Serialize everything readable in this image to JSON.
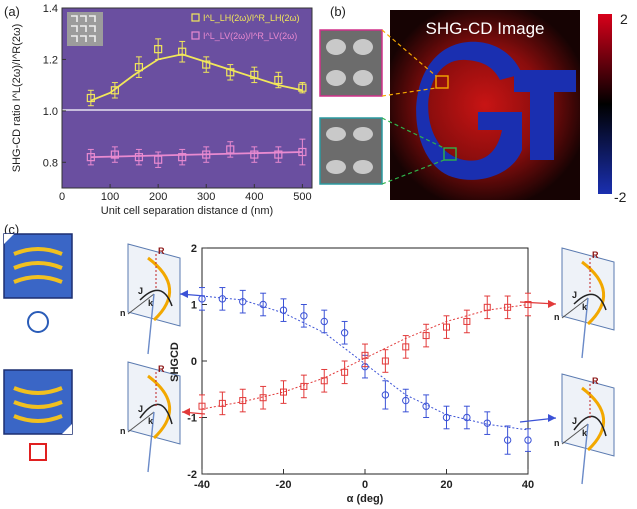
{
  "panel_labels": {
    "a": "(a)",
    "b": "(b)",
    "c": "(c)"
  },
  "colors": {
    "plot_bg": "#6a4fa0",
    "yellow": "#f2e85a",
    "pink": "#e98ad0",
    "blue_series": "#3b52d6",
    "red_series": "#e23a3a",
    "cbar_high": "#d8001a",
    "cbar_low": "#1a2fb0"
  },
  "panel_b": {
    "title": "SHG-CD Image",
    "letters": "GT",
    "colorbar_max": "2",
    "colorbar_min": "-2"
  },
  "chart_data": [
    {
      "type": "scatter",
      "panel": "a",
      "xlabel": "Unit cell separation distance d (nm)",
      "ylabel": "SHG-CD ratio I^L(2ω)/I^R(2ω)",
      "xlim": [
        0,
        520
      ],
      "ylim": [
        0.7,
        1.4
      ],
      "x_ticks": [
        "0",
        "100",
        "200",
        "300",
        "400",
        "500"
      ],
      "y_ticks": [
        "0.8",
        "1.0",
        "1.2",
        "1.4"
      ],
      "legend": [
        "I^L_LH(2ω)/I^R_LH(2ω)",
        "I^L_LV(2ω)/I^R_LV(2ω)"
      ],
      "series": [
        {
          "name": "I^L_LH(2ω)/I^R_LH(2ω)",
          "x": [
            60,
            110,
            160,
            200,
            250,
            300,
            350,
            400,
            450,
            500
          ],
          "y": [
            1.05,
            1.08,
            1.17,
            1.24,
            1.23,
            1.18,
            1.15,
            1.14,
            1.12,
            1.09
          ],
          "err": [
            0.03,
            0.03,
            0.04,
            0.04,
            0.04,
            0.03,
            0.03,
            0.03,
            0.03,
            0.02
          ],
          "fit": [
            [
              60,
              1.04
            ],
            [
              100,
              1.07
            ],
            [
              150,
              1.14
            ],
            [
              200,
              1.2
            ],
            [
              250,
              1.22
            ],
            [
              300,
              1.19
            ],
            [
              350,
              1.16
            ],
            [
              400,
              1.13
            ],
            [
              450,
              1.1
            ],
            [
              500,
              1.08
            ]
          ]
        },
        {
          "name": "I^L_LV(2ω)/I^R_LV(2ω)",
          "x": [
            60,
            110,
            160,
            200,
            250,
            300,
            350,
            400,
            450,
            500
          ],
          "y": [
            0.82,
            0.83,
            0.82,
            0.81,
            0.82,
            0.83,
            0.85,
            0.83,
            0.83,
            0.84
          ],
          "err": [
            0.03,
            0.03,
            0.03,
            0.03,
            0.03,
            0.03,
            0.03,
            0.03,
            0.03,
            0.05
          ],
          "fit": [
            [
              60,
              0.82
            ],
            [
              500,
              0.84
            ]
          ]
        }
      ]
    },
    {
      "type": "scatter",
      "panel": "c",
      "xlabel": "α (deg)",
      "ylabel": "SHGCD",
      "xlim": [
        -40,
        40
      ],
      "ylim": [
        -2,
        2
      ],
      "x_ticks": [
        "-40",
        "-20",
        "0",
        "20",
        "40"
      ],
      "y_ticks": [
        "2",
        "1",
        "0",
        "-1",
        "-2"
      ],
      "series": [
        {
          "name": "blue circles",
          "x": [
            -40,
            -35,
            -30,
            -25,
            -20,
            -15,
            -10,
            -5,
            0,
            5,
            10,
            15,
            20,
            25,
            30,
            35,
            40
          ],
          "y": [
            1.1,
            1.1,
            1.05,
            1.0,
            0.9,
            0.8,
            0.7,
            0.5,
            -0.1,
            -0.6,
            -0.7,
            -0.8,
            -1.0,
            -1.0,
            -1.1,
            -1.4,
            -1.4
          ],
          "err": [
            0.2,
            0.2,
            0.2,
            0.2,
            0.2,
            0.2,
            0.2,
            0.2,
            0.2,
            0.25,
            0.2,
            0.2,
            0.2,
            0.2,
            0.2,
            0.25,
            0.2
          ],
          "fit": [
            [
              -40,
              1.15
            ],
            [
              -30,
              1.08
            ],
            [
              -20,
              0.85
            ],
            [
              -10,
              0.5
            ],
            [
              0,
              -0.05
            ],
            [
              10,
              -0.6
            ],
            [
              20,
              -0.95
            ],
            [
              30,
              -1.12
            ],
            [
              40,
              -1.22
            ]
          ]
        },
        {
          "name": "red squares",
          "x": [
            -40,
            -35,
            -30,
            -25,
            -20,
            -15,
            -10,
            -5,
            0,
            5,
            10,
            15,
            20,
            25,
            30,
            35,
            40
          ],
          "y": [
            -0.8,
            -0.75,
            -0.7,
            -0.65,
            -0.55,
            -0.45,
            -0.35,
            -0.2,
            0.1,
            0.0,
            0.25,
            0.45,
            0.6,
            0.7,
            0.95,
            0.95,
            1.0
          ],
          "err": [
            0.2,
            0.2,
            0.2,
            0.2,
            0.2,
            0.2,
            0.2,
            0.2,
            0.2,
            0.2,
            0.2,
            0.2,
            0.2,
            0.2,
            0.2,
            0.2,
            0.2
          ],
          "fit": [
            [
              -40,
              -0.85
            ],
            [
              -30,
              -0.72
            ],
            [
              -20,
              -0.55
            ],
            [
              -10,
              -0.3
            ],
            [
              0,
              0.05
            ],
            [
              10,
              0.4
            ],
            [
              20,
              0.7
            ],
            [
              30,
              0.9
            ],
            [
              40,
              1.0
            ]
          ]
        }
      ],
      "diagram_labels": {
        "r": "R",
        "j": "J",
        "k": "k",
        "n": "n"
      }
    }
  ]
}
